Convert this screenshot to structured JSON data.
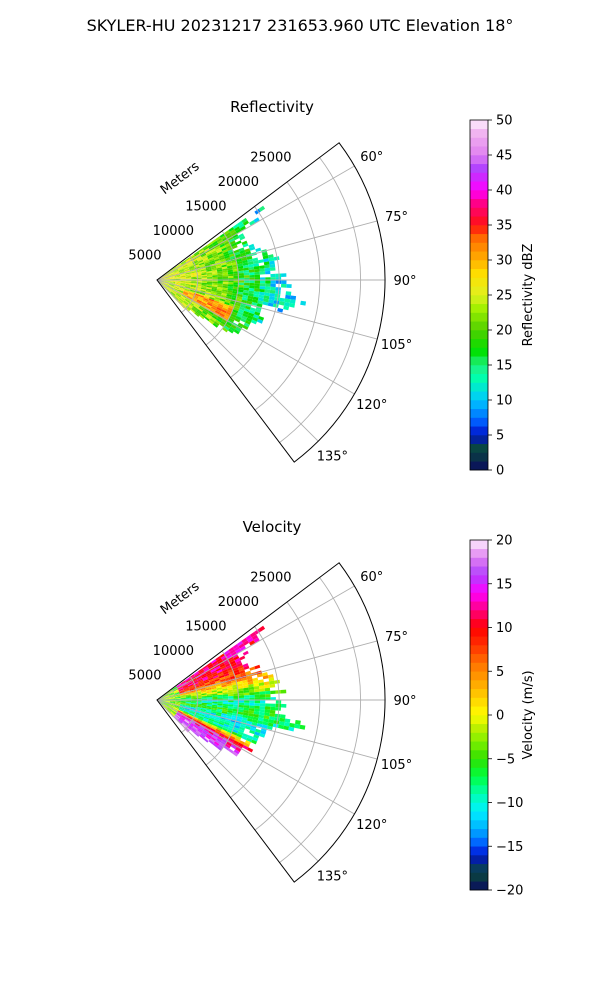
{
  "figure": {
    "title": "SKYLER-HU  20231217  231653.960 UTC Elevation 18°",
    "accent_colors": {
      "grid": "#b0b0b0",
      "axis": "#000000"
    }
  },
  "chart_data": [
    {
      "type": "heatmap",
      "title": "Reflectivity",
      "radial_label": "Meters",
      "range_ticks": [
        5000,
        10000,
        15000,
        20000,
        25000
      ],
      "range_tick_labels": [
        "5000",
        "10000",
        "15000",
        "20000",
        "25000"
      ],
      "rlim": [
        0,
        28000
      ],
      "azimuth_range_deg": [
        53,
        143
      ],
      "azimuth_ticks": [
        60,
        75,
        90,
        105,
        120,
        135
      ],
      "azimuth_tick_labels": [
        "60°",
        "75°",
        "90°",
        "105°",
        "120°",
        "135°"
      ],
      "grid": true,
      "colorbar": {
        "label": "Reflectivity dBZ",
        "range": [
          0,
          50
        ],
        "ticks": [
          0,
          5,
          10,
          15,
          20,
          25,
          30,
          35,
          40,
          45,
          50
        ],
        "tick_labels": [
          "0",
          "5",
          "10",
          "15",
          "20",
          "25",
          "30",
          "35",
          "40",
          "45",
          "50"
        ],
        "stops": [
          [
            0,
            "#0a0a60"
          ],
          [
            3,
            "#0a4a3a"
          ],
          [
            5,
            "#0010c8"
          ],
          [
            7,
            "#0060ff"
          ],
          [
            10,
            "#00c8ff"
          ],
          [
            13,
            "#00ffb0"
          ],
          [
            15,
            "#20f080"
          ],
          [
            17,
            "#00e000"
          ],
          [
            20,
            "#50d000"
          ],
          [
            23,
            "#a0f000"
          ],
          [
            25,
            "#e0f020"
          ],
          [
            28,
            "#ffe000"
          ],
          [
            30,
            "#ffb000"
          ],
          [
            33,
            "#ff7000"
          ],
          [
            35,
            "#ff1010"
          ],
          [
            38,
            "#ff0080"
          ],
          [
            40,
            "#ff00ff"
          ],
          [
            43,
            "#b040ff"
          ],
          [
            45,
            "#e080f0"
          ],
          [
            48,
            "#f0b0f0"
          ],
          [
            50,
            "#fff0ff"
          ]
        ]
      },
      "echo_extent": [
        {
          "azimuth": 56,
          "max_range": 15500
        },
        {
          "azimuth": 60,
          "max_range": 13000
        },
        {
          "azimuth": 66,
          "max_range": 11500
        },
        {
          "azimuth": 72,
          "max_range": 13000
        },
        {
          "azimuth": 78,
          "max_range": 14500
        },
        {
          "azimuth": 84,
          "max_range": 15500
        },
        {
          "azimuth": 90,
          "max_range": 16000
        },
        {
          "azimuth": 96,
          "max_range": 16500
        },
        {
          "azimuth": 100,
          "max_range": 19000
        },
        {
          "azimuth": 104,
          "max_range": 14500
        },
        {
          "azimuth": 110,
          "max_range": 13500
        },
        {
          "azimuth": 118,
          "max_range": 13000
        },
        {
          "azimuth": 124,
          "max_range": 12000
        },
        {
          "azimuth": 128,
          "max_range": 9000
        },
        {
          "azimuth": 132,
          "max_range": 5000
        }
      ],
      "value_by_range": [
        {
          "range": 0,
          "value": 25
        },
        {
          "range": 4000,
          "value": 24
        },
        {
          "range": 8000,
          "value": 21
        },
        {
          "range": 11000,
          "value": 17
        },
        {
          "range": 14000,
          "value": 12
        },
        {
          "range": 19000,
          "value": 10
        }
      ],
      "enhanced_core": {
        "azimuth": [
          108,
          120
        ],
        "range": [
          3000,
          10000
        ],
        "value": 31
      }
    },
    {
      "type": "heatmap",
      "title": "Velocity",
      "radial_label": "Meters",
      "range_ticks": [
        5000,
        10000,
        15000,
        20000,
        25000
      ],
      "range_tick_labels": [
        "5000",
        "10000",
        "15000",
        "20000",
        "25000"
      ],
      "rlim": [
        0,
        28000
      ],
      "azimuth_range_deg": [
        53,
        143
      ],
      "azimuth_ticks": [
        60,
        75,
        90,
        105,
        120,
        135
      ],
      "azimuth_tick_labels": [
        "60°",
        "75°",
        "90°",
        "105°",
        "120°",
        "135°"
      ],
      "grid": true,
      "colorbar": {
        "label": "Velocity (m/s)",
        "range": [
          -20,
          20
        ],
        "ticks": [
          -20,
          -15,
          -10,
          -5,
          0,
          5,
          10,
          15,
          20
        ],
        "tick_labels": [
          "−20",
          "−15",
          "−10",
          "−5",
          "0",
          "5",
          "10",
          "15",
          "20"
        ],
        "stops": [
          [
            -20,
            "#0a0a60"
          ],
          [
            -18,
            "#0a4a3a"
          ],
          [
            -16,
            "#0010c8"
          ],
          [
            -15,
            "#0050ff"
          ],
          [
            -13,
            "#00b0ff"
          ],
          [
            -11,
            "#00f0ff"
          ],
          [
            -9,
            "#00ffb0"
          ],
          [
            -7,
            "#00ff40"
          ],
          [
            -5,
            "#30e000"
          ],
          [
            -3,
            "#80f000"
          ],
          [
            -1,
            "#d0f000"
          ],
          [
            0,
            "#ffff00"
          ],
          [
            2,
            "#ffd000"
          ],
          [
            4,
            "#ffa000"
          ],
          [
            6,
            "#ff7000"
          ],
          [
            8,
            "#ff3000"
          ],
          [
            10,
            "#ff0000"
          ],
          [
            12,
            "#ff0080"
          ],
          [
            14,
            "#ff00ff"
          ],
          [
            16,
            "#b040ff"
          ],
          [
            18,
            "#e080f0"
          ],
          [
            20,
            "#fff0ff"
          ]
        ]
      },
      "echo_extent": [
        {
          "azimuth": 56,
          "max_range": 15500
        },
        {
          "azimuth": 60,
          "max_range": 13000
        },
        {
          "azimuth": 66,
          "max_range": 11500
        },
        {
          "azimuth": 72,
          "max_range": 13000
        },
        {
          "azimuth": 78,
          "max_range": 14500
        },
        {
          "azimuth": 84,
          "max_range": 15500
        },
        {
          "azimuth": 90,
          "max_range": 16000
        },
        {
          "azimuth": 96,
          "max_range": 16500
        },
        {
          "azimuth": 100,
          "max_range": 19000
        },
        {
          "azimuth": 104,
          "max_range": 14500
        },
        {
          "azimuth": 110,
          "max_range": 13500
        },
        {
          "azimuth": 118,
          "max_range": 13000
        },
        {
          "azimuth": 124,
          "max_range": 12000
        },
        {
          "azimuth": 128,
          "max_range": 9000
        },
        {
          "azimuth": 132,
          "max_range": 5000
        }
      ],
      "value_by_azimuth": [
        {
          "azimuth": 56,
          "value": 12
        },
        {
          "azimuth": 66,
          "value": 11
        },
        {
          "azimuth": 74,
          "value": 6
        },
        {
          "azimuth": 82,
          "value": -2
        },
        {
          "azimuth": 90,
          "value": -9
        },
        {
          "azimuth": 98,
          "value": -6
        },
        {
          "azimuth": 104,
          "value": -11
        },
        {
          "azimuth": 112,
          "value": -9
        },
        {
          "azimuth": 118,
          "value": 12
        },
        {
          "azimuth": 124,
          "value": 16
        },
        {
          "azimuth": 132,
          "value": 18
        }
      ]
    }
  ]
}
